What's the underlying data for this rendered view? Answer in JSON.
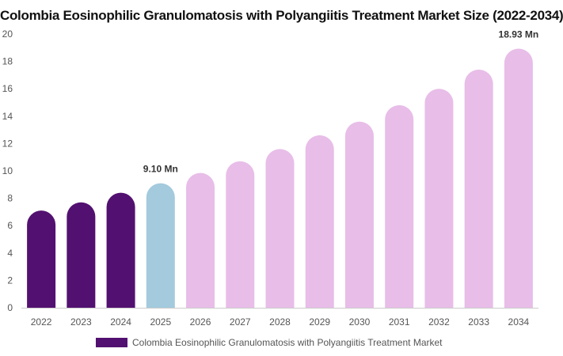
{
  "chart_data": {
    "type": "bar",
    "title": "Colombia Eosinophilic Granulomatosis with Polyangiitis Treatment Market Size (2022-2034)",
    "categories": [
      "2022",
      "2023",
      "2024",
      "2025",
      "2026",
      "2027",
      "2028",
      "2029",
      "2030",
      "2031",
      "2032",
      "2033",
      "2034"
    ],
    "series": [
      {
        "name": "Colombia Eosinophilic Granulomatosis with Polyangiitis Treatment Market",
        "values": [
          7.1,
          7.7,
          8.4,
          9.1,
          9.85,
          10.7,
          11.6,
          12.6,
          13.6,
          14.8,
          16.0,
          17.4,
          18.93
        ]
      }
    ],
    "data_labels": [
      {
        "category": "2025",
        "text": "9.10 Mn"
      },
      {
        "category": "2034",
        "text": "18.93 Mn"
      }
    ],
    "ylim": [
      0,
      20
    ],
    "yticks": [
      0,
      2,
      4,
      6,
      8,
      10,
      12,
      14,
      16,
      18,
      20
    ],
    "grid": false,
    "legend_position": "bottom",
    "colors": {
      "historical": "#521170",
      "current": "#a3cadd",
      "forecast": "#e8bde8",
      "axis": "#cccccc"
    }
  }
}
